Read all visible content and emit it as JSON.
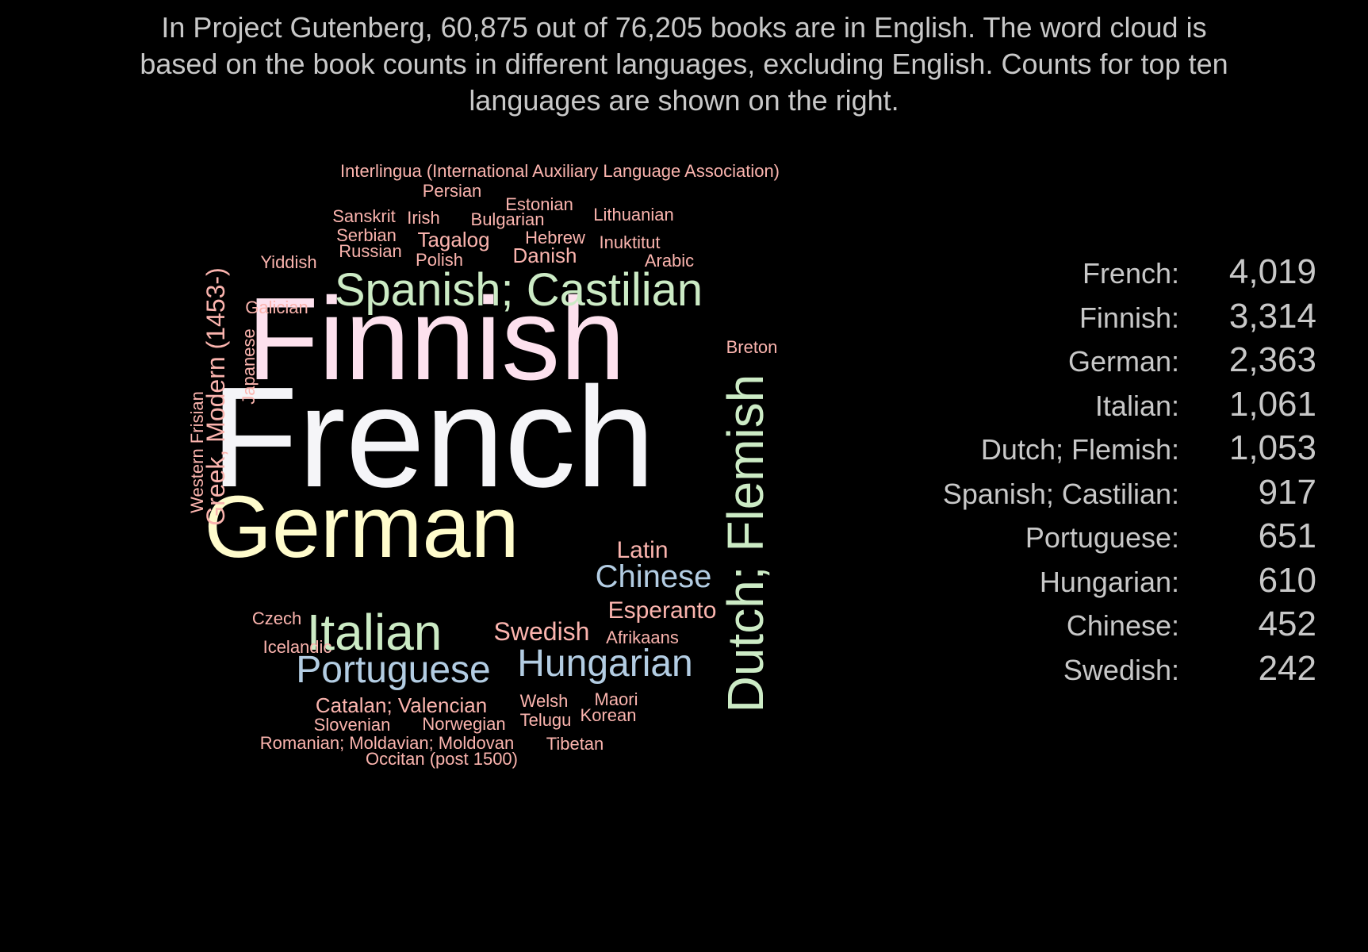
{
  "title": "In Project Gutenberg, 60,875 out of 76,205 books are in English. The word cloud is based on the book counts in different languages, excluding English. Counts for top ten languages are shown on the right.",
  "colors": {
    "background": "#000000",
    "text": "#c8c8c8",
    "white": "#f5f5f8",
    "pink": "#fde1ee",
    "yellow": "#fffccc",
    "green": "#ccebc5",
    "blue": "#b3cde3",
    "salmon": "#fbb4ae"
  },
  "chart_data": [
    {
      "type": "wordcloud",
      "words": [
        {
          "text": "French",
          "weight": 4019,
          "color": "white"
        },
        {
          "text": "Finnish",
          "weight": 3314,
          "color": "pink"
        },
        {
          "text": "German",
          "weight": 2363,
          "color": "yellow"
        },
        {
          "text": "Italian",
          "weight": 1061,
          "color": "green"
        },
        {
          "text": "Dutch; Flemish",
          "weight": 1053,
          "color": "green",
          "rotated": true
        },
        {
          "text": "Spanish; Castilian",
          "weight": 917,
          "color": "green"
        },
        {
          "text": "Portuguese",
          "weight": 651,
          "color": "blue"
        },
        {
          "text": "Hungarian",
          "weight": 610,
          "color": "blue"
        },
        {
          "text": "Chinese",
          "weight": 452,
          "color": "blue"
        },
        {
          "text": "Swedish",
          "weight": 242,
          "color": "salmon"
        },
        {
          "text": "Greek, Modern (1453-)",
          "color": "salmon",
          "rotated": true
        },
        {
          "text": "Latin",
          "color": "salmon"
        },
        {
          "text": "Esperanto",
          "color": "salmon"
        },
        {
          "text": "Catalan; Valencian",
          "color": "salmon"
        },
        {
          "text": "Tagalog",
          "color": "salmon"
        },
        {
          "text": "Danish",
          "color": "salmon"
        },
        {
          "text": "Interlingua (International Auxiliary Language Association)",
          "color": "salmon"
        },
        {
          "text": "Persian",
          "color": "salmon"
        },
        {
          "text": "Estonian",
          "color": "salmon"
        },
        {
          "text": "Sanskrit",
          "color": "salmon"
        },
        {
          "text": "Irish",
          "color": "salmon"
        },
        {
          "text": "Bulgarian",
          "color": "salmon"
        },
        {
          "text": "Lithuanian",
          "color": "salmon"
        },
        {
          "text": "Serbian",
          "color": "salmon"
        },
        {
          "text": "Hebrew",
          "color": "salmon"
        },
        {
          "text": "Inuktitut",
          "color": "salmon"
        },
        {
          "text": "Russian",
          "color": "salmon"
        },
        {
          "text": "Polish",
          "color": "salmon"
        },
        {
          "text": "Arabic",
          "color": "salmon"
        },
        {
          "text": "Yiddish",
          "color": "salmon"
        },
        {
          "text": "Galician",
          "color": "salmon"
        },
        {
          "text": "Breton",
          "color": "salmon"
        },
        {
          "text": "Japanese",
          "color": "salmon",
          "rotated": true
        },
        {
          "text": "Western Frisian",
          "color": "salmon",
          "rotated": true
        },
        {
          "text": "Czech",
          "color": "salmon"
        },
        {
          "text": "Icelandic",
          "color": "salmon"
        },
        {
          "text": "Afrikaans",
          "color": "salmon"
        },
        {
          "text": "Welsh",
          "color": "salmon"
        },
        {
          "text": "Maori",
          "color": "salmon"
        },
        {
          "text": "Slovenian",
          "color": "salmon"
        },
        {
          "text": "Norwegian",
          "color": "salmon"
        },
        {
          "text": "Telugu",
          "color": "salmon"
        },
        {
          "text": "Korean",
          "color": "salmon"
        },
        {
          "text": "Romanian; Moldavian; Moldovan",
          "color": "salmon"
        },
        {
          "text": "Tibetan",
          "color": "salmon"
        },
        {
          "text": "Occitan (post 1500)",
          "color": "salmon"
        }
      ]
    },
    {
      "type": "table",
      "rows": [
        {
          "label": "French:",
          "count": "4,019"
        },
        {
          "label": "Finnish:",
          "count": "3,314"
        },
        {
          "label": "German:",
          "count": "2,363"
        },
        {
          "label": "Italian:",
          "count": "1,061"
        },
        {
          "label": "Dutch; Flemish:",
          "count": "1,053"
        },
        {
          "label": "Spanish; Castilian:",
          "count": "917"
        },
        {
          "label": "Portuguese:",
          "count": "651"
        },
        {
          "label": "Hungarian:",
          "count": "610"
        },
        {
          "label": "Chinese:",
          "count": "452"
        },
        {
          "label": "Swedish:",
          "count": "242"
        }
      ]
    }
  ]
}
